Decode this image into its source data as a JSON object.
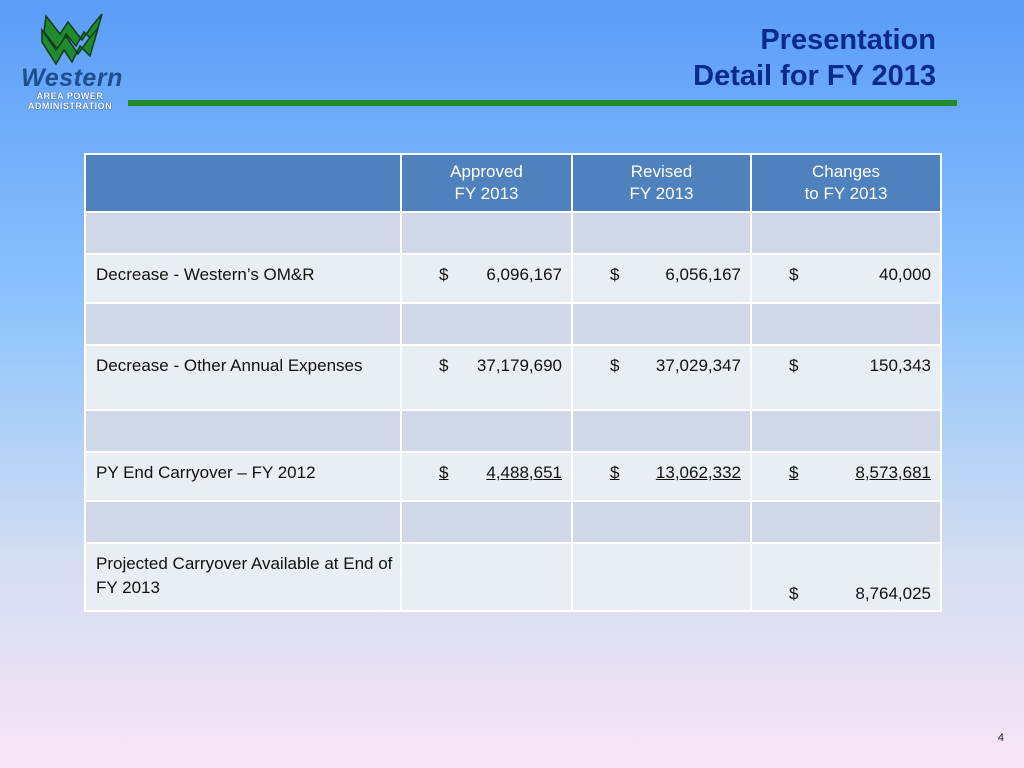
{
  "logo": {
    "word": "Western",
    "line1": "AREA POWER",
    "line2": "ADMINISTRATION"
  },
  "title": {
    "line1": "Presentation",
    "line2": "Detail for FY 2013"
  },
  "table": {
    "headers": [
      {
        "l1": "",
        "l2": ""
      },
      {
        "l1": "Approved",
        "l2": "FY 2013"
      },
      {
        "l1": "Revised",
        "l2": "FY 2013"
      },
      {
        "l1": "Changes",
        "l2": "to FY 2013"
      }
    ],
    "rows": [
      {
        "label": "Decrease - Western’s OM&R",
        "approved": "6,096,167",
        "revised": "6,056,167",
        "changes": "40,000"
      },
      {
        "label": "Decrease - Other Annual Expenses",
        "approved": "37,179,690",
        "revised": "37,029,347",
        "changes": "150,343"
      },
      {
        "label": "PY End Carryover – FY 2012",
        "approved": "4,488,651",
        "revised": "13,062,332",
        "changes": "8,573,681"
      },
      {
        "label": "Projected Carryover Available at End of FY 2013",
        "approved": "",
        "revised": "",
        "changes": "8,764,025"
      }
    ],
    "currency": "$"
  },
  "page_number": "4",
  "colors": {
    "title": "#0a2a8c",
    "header_fill": "#4f81bd",
    "rule_green": "#1f8a2e",
    "logo_green": "#1f8a2e"
  }
}
